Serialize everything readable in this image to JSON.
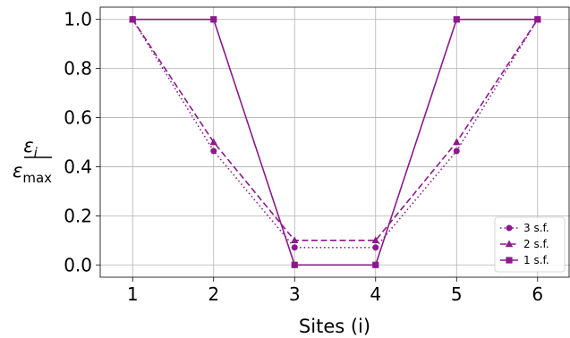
{
  "chart_data": {
    "type": "line",
    "xlabel": "Sites (i)",
    "ylabel": {
      "numerator": "ε",
      "numerator_sub": "i",
      "denominator": "ε",
      "denominator_sub": "max"
    },
    "x": [
      1,
      2,
      3,
      4,
      5,
      6
    ],
    "xlim": [
      0.6,
      6.4
    ],
    "ylim": [
      -0.05,
      1.05
    ],
    "xticks": [
      "1",
      "2",
      "3",
      "4",
      "5",
      "6"
    ],
    "yticks": [
      "0.0",
      "0.2",
      "0.4",
      "0.6",
      "0.8",
      "1.0"
    ],
    "grid": true,
    "legend_position": "bottom-right",
    "color": "#8b1a8b",
    "series": [
      {
        "name": "3 s.f.",
        "values": [
          1.0,
          0.464,
          0.071,
          0.071,
          0.464,
          1.0
        ],
        "linestyle": "dotted",
        "marker": "circle"
      },
      {
        "name": "2 s.f.",
        "values": [
          1.0,
          0.5,
          0.1,
          0.1,
          0.5,
          1.0
        ],
        "linestyle": "dashed",
        "marker": "triangle"
      },
      {
        "name": "1 s.f.",
        "values": [
          1.0,
          1.0,
          0.0,
          0.0,
          1.0,
          1.0
        ],
        "linestyle": "solid",
        "marker": "square"
      }
    ]
  }
}
